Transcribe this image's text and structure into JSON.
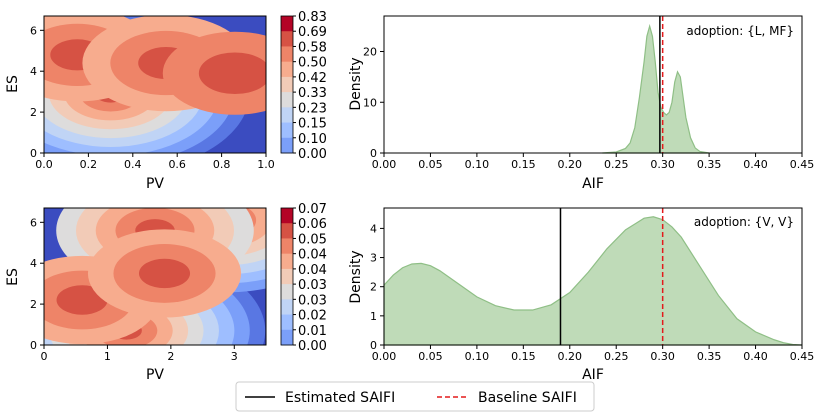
{
  "legend": {
    "estimated_label": "Estimated SAIFI",
    "baseline_label": "Baseline SAIFI",
    "estimated_color": "#000000",
    "baseline_color": "#e31a1c"
  },
  "chart_data": [
    {
      "type": "heatmap",
      "id": "c1",
      "panel": "top-left",
      "xlabel": "PV",
      "ylabel": "ES",
      "xlim": [
        0,
        1.0
      ],
      "ylim": [
        0,
        6.7
      ],
      "xticks": [
        "0.0",
        "0.2",
        "0.4",
        "0.6",
        "0.8",
        "1.0"
      ],
      "yticks": [
        "0",
        "2",
        "4",
        "6"
      ],
      "colorbar_ticks": [
        "0.83",
        "0.69",
        "0.58",
        "0.50",
        "0.42",
        "0.33",
        "0.23",
        "0.15",
        "0.10",
        "0.00"
      ],
      "colorbar_range": [
        0.0,
        0.83
      ],
      "density_peaks": [
        {
          "x": 0.3,
          "y": 2.9,
          "w": 1.0
        },
        {
          "x": 0.15,
          "y": 4.8,
          "w": 0.35
        },
        {
          "x": 0.55,
          "y": 4.4,
          "w": 0.38
        },
        {
          "x": 0.86,
          "y": 3.9,
          "w": 0.25
        }
      ]
    },
    {
      "type": "area",
      "id": "c2",
      "panel": "top-right",
      "xlabel": "AIF",
      "ylabel": "Density",
      "xlim": [
        0.0,
        0.45
      ],
      "ylim": [
        0,
        27
      ],
      "xticks": [
        "0.00",
        "0.05",
        "0.10",
        "0.15",
        "0.20",
        "0.25",
        "0.30",
        "0.35",
        "0.40",
        "0.45"
      ],
      "yticks": [
        "0",
        "10",
        "20"
      ],
      "annotation": "adoption: {L, MF}",
      "estimated_saifi": 0.297,
      "baseline_saifi": 0.3,
      "curve": {
        "x": [
          0.235,
          0.25,
          0.26,
          0.265,
          0.27,
          0.275,
          0.28,
          0.283,
          0.286,
          0.289,
          0.292,
          0.295,
          0.298,
          0.301,
          0.304,
          0.307,
          0.31,
          0.313,
          0.316,
          0.319,
          0.322,
          0.325,
          0.33,
          0.335,
          0.34,
          0.35
        ],
        "y": [
          0,
          0.2,
          0.9,
          2,
          5,
          11,
          18,
          23,
          25,
          23,
          18,
          12,
          9,
          8,
          7.5,
          8,
          10,
          14,
          16,
          15,
          11,
          7,
          3,
          1,
          0.3,
          0
        ]
      }
    },
    {
      "type": "heatmap",
      "id": "c3",
      "panel": "bottom-left",
      "xlabel": "PV",
      "ylabel": "ES",
      "xlim": [
        0,
        3.5
      ],
      "ylim": [
        0,
        6.7
      ],
      "xticks": [
        "0",
        "1",
        "2",
        "3"
      ],
      "yticks": [
        "0",
        "2",
        "4",
        "6"
      ],
      "colorbar_ticks": [
        "0.07",
        "0.06",
        "0.05",
        "0.04",
        "0.04",
        "0.03",
        "0.03",
        "0.02",
        "0.01",
        "0.00"
      ],
      "colorbar_range": [
        0.0,
        0.07
      ],
      "density_peaks": [
        {
          "x": 1.3,
          "y": 0.7,
          "w": 1.0
        },
        {
          "x": 2.85,
          "y": 6.1,
          "w": 0.85
        },
        {
          "x": 1.75,
          "y": 5.6,
          "w": 0.55
        },
        {
          "x": 0.6,
          "y": 2.2,
          "w": 0.3
        },
        {
          "x": 1.9,
          "y": 3.5,
          "w": 0.3
        }
      ]
    },
    {
      "type": "area",
      "id": "c4",
      "panel": "bottom-right",
      "xlabel": "AIF",
      "ylabel": "Density",
      "xlim": [
        0.0,
        0.45
      ],
      "ylim": [
        0,
        4.7
      ],
      "xticks": [
        "0.00",
        "0.05",
        "0.10",
        "0.15",
        "0.20",
        "0.25",
        "0.30",
        "0.35",
        "0.40",
        "0.45"
      ],
      "yticks": [
        "0",
        "1",
        "2",
        "3",
        "4"
      ],
      "annotation": "adoption: {V, V}",
      "estimated_saifi": 0.19,
      "baseline_saifi": 0.3,
      "curve": {
        "x": [
          0.0,
          0.01,
          0.02,
          0.03,
          0.04,
          0.05,
          0.06,
          0.08,
          0.1,
          0.12,
          0.14,
          0.16,
          0.18,
          0.2,
          0.22,
          0.24,
          0.26,
          0.28,
          0.29,
          0.3,
          0.31,
          0.32,
          0.34,
          0.36,
          0.38,
          0.4,
          0.42,
          0.43,
          0.44,
          0.45
        ],
        "y": [
          2.05,
          2.4,
          2.65,
          2.78,
          2.8,
          2.72,
          2.55,
          2.1,
          1.65,
          1.35,
          1.2,
          1.2,
          1.38,
          1.8,
          2.5,
          3.3,
          3.95,
          4.35,
          4.4,
          4.3,
          4.05,
          3.7,
          2.7,
          1.7,
          0.9,
          0.45,
          0.18,
          0.08,
          0.02,
          0.0
        ]
      }
    }
  ]
}
